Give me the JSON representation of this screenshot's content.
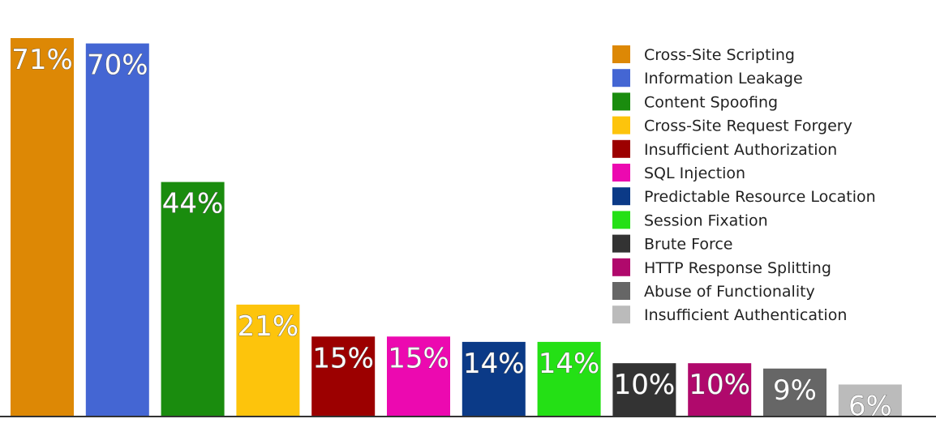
{
  "chart_data": {
    "type": "bar",
    "title": "",
    "xlabel": "",
    "ylabel": "",
    "ylim": [
      0,
      71
    ],
    "grid": false,
    "legend_position": "top-right",
    "categories": [
      "Cross-Site Scripting",
      "Information Leakage",
      "Content Spoofing",
      "Cross-Site Request Forgery",
      "Insufficient Authorization",
      "SQL Injection",
      "Predictable Resource Location",
      "Session Fixation",
      "Brute Force",
      "HTTP Response Splitting",
      "Abuse of Functionality",
      "Insufficient Authentication"
    ],
    "values": [
      71,
      70,
      44,
      21,
      15,
      15,
      14,
      14,
      10,
      10,
      9,
      6
    ],
    "value_labels": [
      "71%",
      "70%",
      "44%",
      "21%",
      "15%",
      "15%",
      "14%",
      "14%",
      "10%",
      "10%",
      "9%",
      "6%"
    ],
    "colors": [
      "#dd8805",
      "#4466d3",
      "#1a8c0e",
      "#fdc40c",
      "#9c0000",
      "#ec09b0",
      "#0b3a87",
      "#24e015",
      "#333333",
      "#b0096c",
      "#666666",
      "#bbbbbb"
    ]
  }
}
